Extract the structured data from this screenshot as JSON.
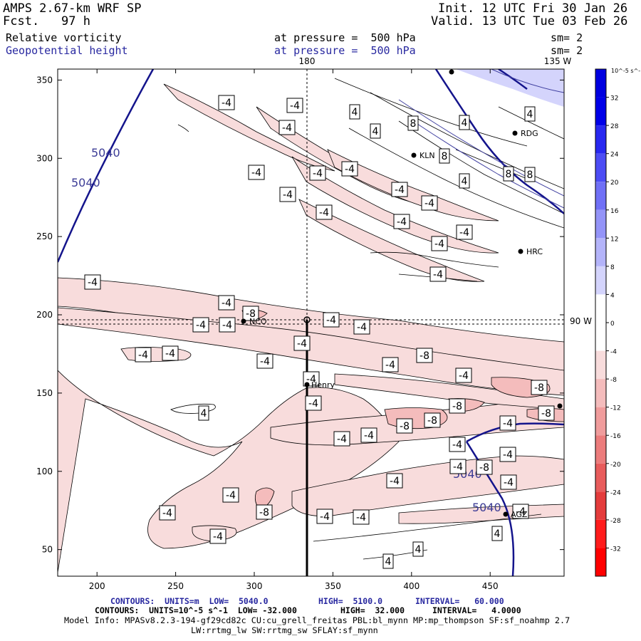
{
  "header": {
    "model": "AMPS 2.67-km WRF SP",
    "fcst_label": "Fcst.",
    "fcst_value": "97 h",
    "init": "Init. 12 UTC Fri 30 Jan 26",
    "valid": "Valid. 13 UTC Tue 03 Feb 26",
    "field1_name": "Relative vorticity",
    "field1_pressure": "at pressure =  500 hPa",
    "field1_sm": "sm= 2",
    "field2_name": "Geopotential height",
    "field2_pressure": "at pressure =  500 hPa",
    "field2_sm": "sm= 2"
  },
  "map": {
    "lon_180_label": "180",
    "lon_135w_label": "135 W",
    "lat_90w_label": "90 W",
    "x_ticks": [
      "200",
      "250",
      "300",
      "350",
      "400",
      "450"
    ],
    "y_ticks": [
      "350",
      "300",
      "250",
      "200",
      "150",
      "100",
      "50"
    ],
    "stations": [
      {
        "name": "RDG"
      },
      {
        "name": "KLN"
      },
      {
        "name": "HRC"
      },
      {
        "name": "NCO"
      },
      {
        "name": "Henry"
      },
      {
        "name": "AGZ"
      }
    ],
    "height_labels": [
      "5040",
      "5040",
      "5040",
      "5040"
    ],
    "vorticity_labels": [
      "-4",
      "-8",
      "4",
      "8"
    ]
  },
  "colorbar": {
    "unit_label": "10^-5 s^-1",
    "levels": [
      "32",
      "28",
      "24",
      "20",
      "16",
      "12",
      "8",
      "4",
      "0",
      "-4",
      "-8",
      "-12",
      "-16",
      "-20",
      "-24",
      "-28",
      "-32"
    ],
    "colors": [
      "#0000e0",
      "#2828f0",
      "#4c4cf4",
      "#7070f6",
      "#9494f8",
      "#b4b4fa",
      "#d4d4fc",
      "#ffffff",
      "#ffffff",
      "#f8dcdc",
      "#f4bcbc",
      "#f09c9c",
      "#ec7c7c",
      "#e85c5c",
      "#e43c3c",
      "#ff1c1c",
      "#ff0000"
    ]
  },
  "footer": {
    "line1_prefix": "CONTOURS:  UNITS=m  LOW=  5040.0",
    "line1_high": "HIGH=  5100.0",
    "line1_interval": "INTERVAL=   60.000",
    "line2_prefix": "CONTOURS:  UNITS=10^-5 s^-1  LOW= -32.000",
    "line2_high": "HIGH=  32.000",
    "line2_interval": "INTERVAL=   4.0000",
    "line3": "Model Info: MPASv8.2.3-194-gf29cd82c CU:cu_grell_freitas PBL:bl_mynn MP:mp_thompson SF:sf_noahmp 2.7",
    "line4": "LW:rrtmg_lw SW:rrtmg_sw SFLAY:sf_mynn"
  }
}
